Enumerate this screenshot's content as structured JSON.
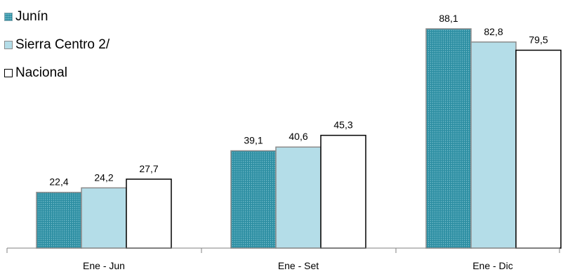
{
  "chart_data": {
    "type": "bar",
    "categories": [
      "Ene - Jun",
      "Ene - Set",
      "Ene - Dic"
    ],
    "series": [
      {
        "name": "Junín",
        "values": [
          22.4,
          39.1,
          88.1
        ],
        "color": "#2e8fa3",
        "pattern": "dotted"
      },
      {
        "name": "Sierra Centro 2/",
        "values": [
          24.2,
          40.6,
          82.8
        ],
        "color": "#b4dde8"
      },
      {
        "name": "Nacional",
        "values": [
          27.7,
          45.3,
          79.5
        ],
        "color": "#ffffff"
      }
    ],
    "value_labels": [
      [
        "22,4",
        "39,1",
        "88,1"
      ],
      [
        "24,2",
        "40,6",
        "82,8"
      ],
      [
        "27,7",
        "45,3",
        "79,5"
      ]
    ],
    "ylim": [
      0,
      100
    ],
    "grid": false,
    "legend_position": "top-left",
    "title": "",
    "xlabel": "",
    "ylabel": ""
  }
}
